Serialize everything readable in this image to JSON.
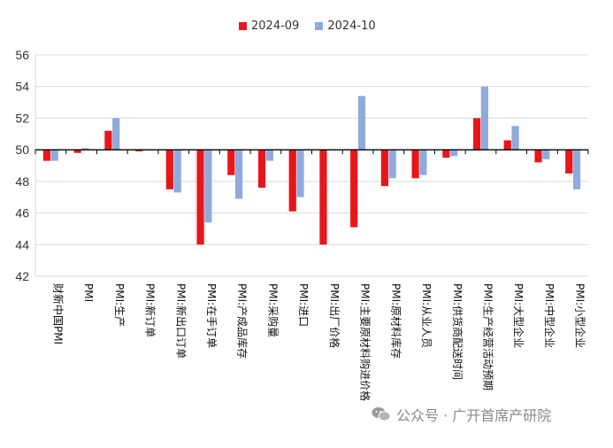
{
  "chart_data": {
    "type": "bar",
    "title": "",
    "xlabel": "",
    "ylabel": "",
    "ylim": [
      42,
      56
    ],
    "yticks": [
      42,
      44,
      46,
      48,
      50,
      52,
      54,
      56
    ],
    "baseline": 50,
    "grid": true,
    "legend_position": "top-center",
    "categories": [
      "财新中国PMI",
      "PMI",
      "PMI:生产",
      "PMI:新订单",
      "PMI:新出口订单",
      "PMI:在手订单",
      "PMI:产成品库存",
      "PMI:采购量",
      "PMI:进口",
      "PMI:出厂价格",
      "PMI:主要原材料购进价格",
      "PMI:原材料库存",
      "PMI:从业人员",
      "PMI:供货商配送时间",
      "PMI:生产经营活动预期",
      "PMI:大型企业",
      "PMI:中型企业",
      "PMI:小型企业"
    ],
    "series": [
      {
        "name": "2024-09",
        "color": "#e8161b",
        "values": [
          49.3,
          49.8,
          51.2,
          49.9,
          47.5,
          44.0,
          48.4,
          47.6,
          46.1,
          44.0,
          45.1,
          47.7,
          48.2,
          49.5,
          52.0,
          50.6,
          49.2,
          48.5
        ]
      },
      {
        "name": "2024-10",
        "color": "#8faadc",
        "values": [
          49.3,
          50.1,
          52.0,
          50.0,
          47.3,
          45.4,
          46.9,
          49.3,
          47.0,
          50.0,
          53.4,
          48.2,
          48.4,
          49.6,
          54.0,
          51.5,
          49.4,
          47.5
        ]
      }
    ]
  },
  "watermark": {
    "text": "公众号 · 广开首席产研院",
    "icon": "wechat-icon"
  }
}
